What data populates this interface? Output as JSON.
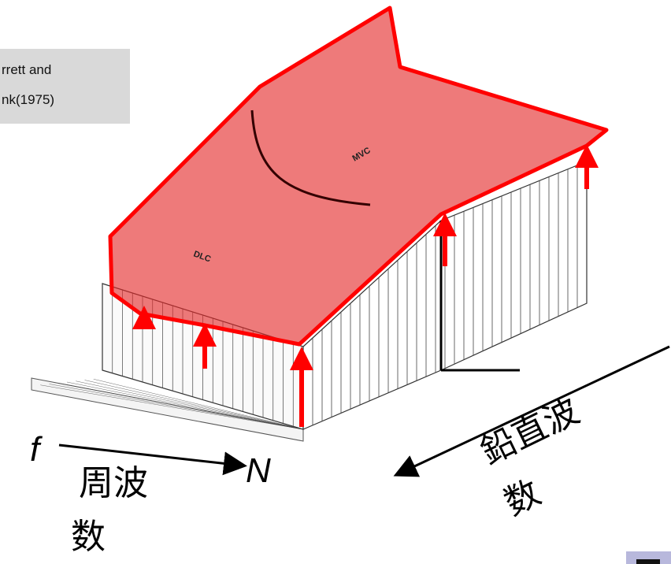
{
  "citation": {
    "lines": [
      "rrett and",
      "nk(1975)"
    ]
  },
  "figure_labels": {
    "left": "DLC",
    "right": "MVC"
  },
  "horizontal_axis": {
    "start": "f",
    "end": "N",
    "label_lines": [
      "周波",
      "数"
    ]
  },
  "vertical_wavenumber_axis": {
    "label_lines": [
      "鉛直波",
      "数"
    ]
  }
}
